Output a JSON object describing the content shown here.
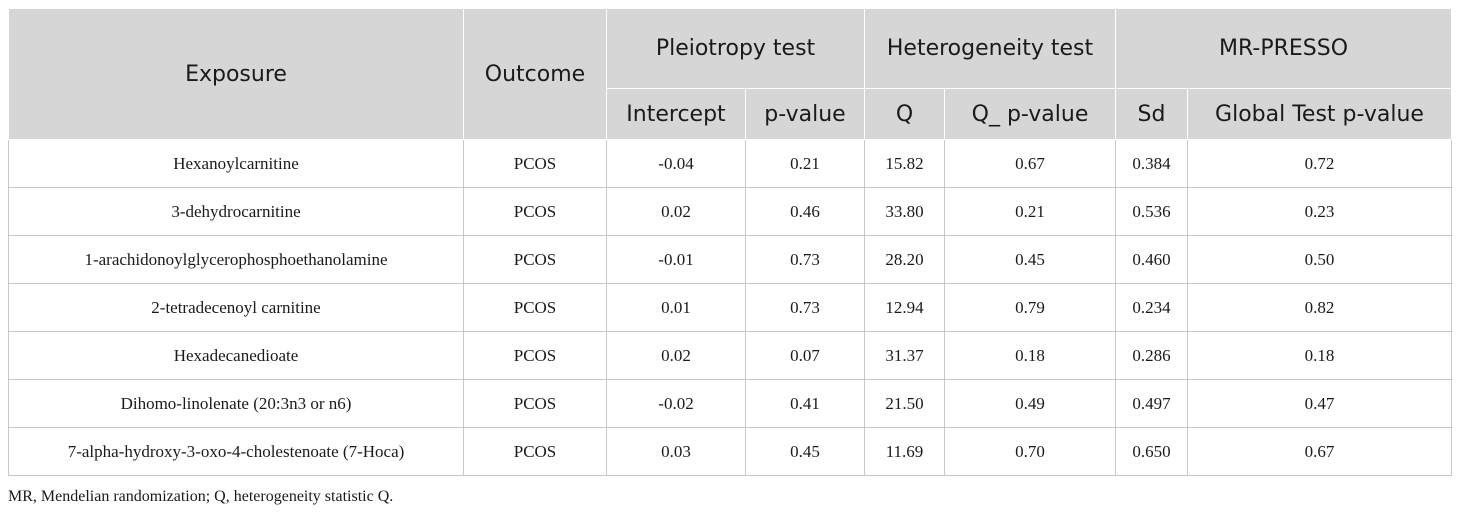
{
  "header": {
    "exposure": "Exposure",
    "outcome": "Outcome",
    "pleiotropy": "Pleiotropy test",
    "heterogeneity": "Heterogeneity test",
    "mrpresso": "MR-PRESSO",
    "intercept": "Intercept",
    "pvalue": "p-value",
    "q": "Q",
    "q_pvalue": "Q_ p-value",
    "sd": "Sd",
    "global_pvalue": "Global Test p-value"
  },
  "rows": [
    [
      "Hexanoylcarnitine",
      "PCOS",
      "-0.04",
      "0.21",
      "15.82",
      "0.67",
      "0.384",
      "0.72"
    ],
    [
      "3-dehydrocarnitine",
      "PCOS",
      "0.02",
      "0.46",
      "33.80",
      "0.21",
      "0.536",
      "0.23"
    ],
    [
      "1-arachidonoylglycerophosphoethanolamine",
      "PCOS",
      "-0.01",
      "0.73",
      "28.20",
      "0.45",
      "0.460",
      "0.50"
    ],
    [
      "2-tetradecenoyl carnitine",
      "PCOS",
      "0.01",
      "0.73",
      "12.94",
      "0.79",
      "0.234",
      "0.82"
    ],
    [
      "Hexadecanedioate",
      "PCOS",
      "0.02",
      "0.07",
      "31.37",
      "0.18",
      "0.286",
      "0.18"
    ],
    [
      "Dihomo-linolenate (20:3n3 or n6)",
      "PCOS",
      "-0.02",
      "0.41",
      "21.50",
      "0.49",
      "0.497",
      "0.47"
    ],
    [
      "7-alpha-hydroxy-3-oxo-4-cholestenoate (7-Hoca)",
      "PCOS",
      "0.03",
      "0.45",
      "11.69",
      "0.70",
      "0.650",
      "0.67"
    ]
  ],
  "footnote": "MR, Mendelian randomization; Q, heterogeneity statistic Q."
}
